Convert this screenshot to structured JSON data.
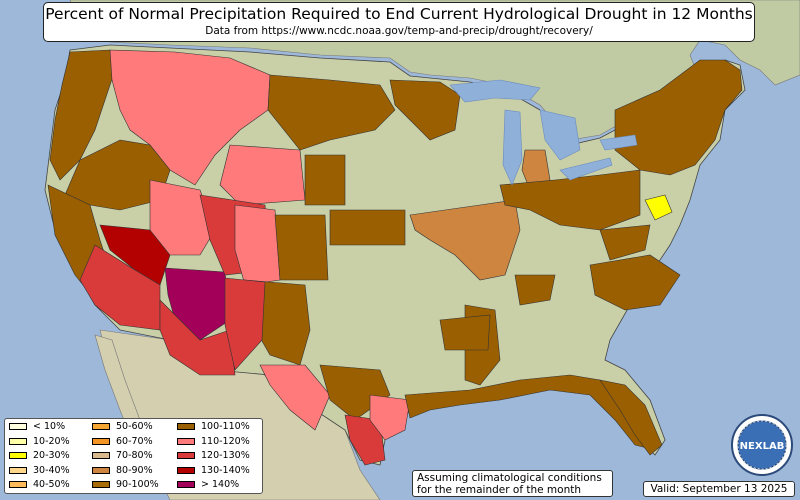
{
  "title": "Percent of Normal Precipitation Required to End Current Hydrological Drought in 12 Months",
  "subtitle": "Data from https://www.ncdc.noaa.gov/temp-and-precip/drought/recovery/",
  "note": {
    "line1": "Assuming climatological conditions",
    "line2": "for the remainder of the month"
  },
  "valid": "Valid: September 13 2025",
  "logo_text": "NEXLAB",
  "colors": {
    "ocean": "#9db8d9",
    "land": "#c9cfa7",
    "canada": "#c0caa3",
    "mexico": "#d4cfae",
    "lakes": "#8fb0d8"
  },
  "legend": [
    {
      "label": "< 10%",
      "color": "#ffffe0"
    },
    {
      "label": "10-20%",
      "color": "#ffffa8"
    },
    {
      "label": "20-30%",
      "color": "#ffff00"
    },
    {
      "label": "30-40%",
      "color": "#ffd88c"
    },
    {
      "label": "40-50%",
      "color": "#ffba5c"
    },
    {
      "label": "50-60%",
      "color": "#f7a631"
    },
    {
      "label": "60-70%",
      "color": "#f39625"
    },
    {
      "label": "70-80%",
      "color": "#d8b98f"
    },
    {
      "label": "80-90%",
      "color": "#cd853f"
    },
    {
      "label": "90-100%",
      "color": "#a86b0a"
    },
    {
      "label": "100-110%",
      "color": "#9a5f00"
    },
    {
      "label": "110-120%",
      "color": "#ff7a7a"
    },
    {
      "label": "120-130%",
      "color": "#d93b3b"
    },
    {
      "label": "130-140%",
      "color": "#b30000"
    },
    {
      "label": "> 140%",
      "color": "#a3005a"
    }
  ]
}
